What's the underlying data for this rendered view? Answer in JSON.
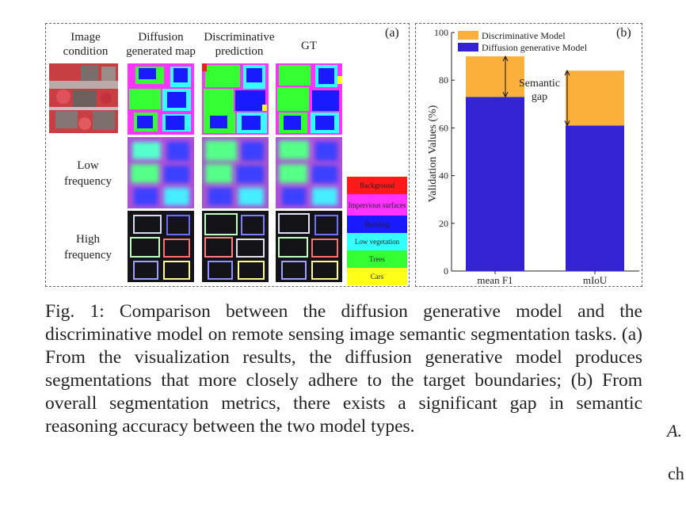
{
  "figure": {
    "panel_a": {
      "tag": "(a)",
      "column_headers": [
        "Image condition",
        "Diffusion generated map",
        "Discriminative prediction",
        "GT"
      ],
      "row_labels": [
        "Low frequency",
        "High frequency"
      ],
      "legend": [
        {
          "label": "Background",
          "color": "#ff1a1a"
        },
        {
          "label": "Impervious surfaces",
          "color": "#ff33ff"
        },
        {
          "label": "Building",
          "color": "#1a1aff"
        },
        {
          "label": "Low vegetation",
          "color": "#33ffff"
        },
        {
          "label": "Trees",
          "color": "#33ff33"
        },
        {
          "label": "Cars",
          "color": "#ffff1a"
        }
      ]
    },
    "panel_b": {
      "tag": "(b)"
    }
  },
  "chart_data": {
    "type": "bar",
    "stacked": true,
    "categories": [
      "mean F1",
      "mIoU"
    ],
    "series": [
      {
        "name": "Diffusion generative Model",
        "values": [
          73,
          61
        ],
        "color": "#3323d3"
      },
      {
        "name": "Discriminative Model",
        "values": [
          17,
          23
        ],
        "color": "#fbb03b"
      }
    ],
    "totals": [
      90,
      84
    ],
    "ylabel": "Validation Values (%)",
    "ylim": [
      0,
      100
    ],
    "yticks": [
      0,
      20,
      40,
      60,
      80,
      100
    ],
    "legend_position": "top-left",
    "annotation": "Semantic gap",
    "grid": false
  },
  "caption": {
    "text": "Fig. 1: Comparison between the diffusion generative model and the discriminative model on remote sensing image semantic segmentation tasks. (a) From the visualization results, the diffusion generative model produces segmentations that more closely adhere to the target boundaries; (b) From overall segmentation metrics, there exists a significant gap in semantic reasoning accuracy between the two model types."
  },
  "adjacent_column": {
    "fragment_1": "A.",
    "fragment_2": "ch"
  }
}
